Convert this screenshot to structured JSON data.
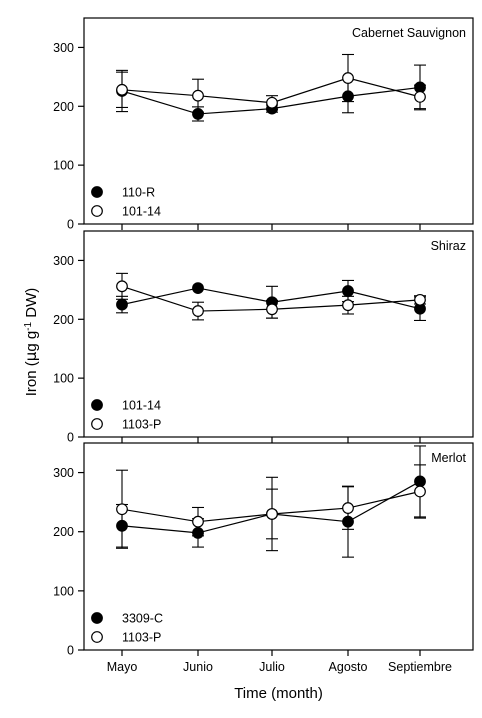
{
  "chart_data": {
    "type": "line",
    "shared": {
      "categories": [
        "Mayo",
        "Junio",
        "Julio",
        "Agosto",
        "Septiembre"
      ],
      "xlabel": "Time (month)",
      "ylabel_prefix": "Iron (",
      "ylabel_mu": "μ",
      "ylabel_unit": "g g",
      "ylabel_sup": "-1",
      "ylabel_suffix": " DW)",
      "ylim": [
        0,
        350
      ],
      "yticks": [
        0,
        100,
        200,
        300
      ]
    },
    "panels": [
      {
        "title": "Cabernet Sauvignon",
        "series": [
          {
            "name": "110-R",
            "marker": "filled",
            "values": [
              226,
              187,
              196,
              217,
              232
            ],
            "err": [
              35,
              12,
              6,
              28,
              38
            ]
          },
          {
            "name": "101-14",
            "marker": "open",
            "values": [
              228,
              218,
              206,
              248,
              216
            ],
            "err": [
              30,
              28,
              12,
              40,
              20
            ]
          }
        ]
      },
      {
        "title": "Shiraz",
        "series": [
          {
            "name": "101-14",
            "marker": "filled",
            "values": [
              225,
              253,
              229,
              248,
              218
            ],
            "err": [
              14,
              0,
              27,
              18,
              20
            ]
          },
          {
            "name": "1103-P",
            "marker": "open",
            "values": [
              256,
              214,
              217,
              224,
              233
            ],
            "err": [
              22,
              15,
              15,
              15,
              7
            ]
          }
        ]
      },
      {
        "title": "Merlot",
        "series": [
          {
            "name": "3309-C",
            "marker": "filled",
            "values": [
              210,
              198,
              230,
              217,
              285
            ],
            "err": [
              36,
              24,
              62,
              60,
              60
            ]
          },
          {
            "name": "1103-P",
            "marker": "open",
            "values": [
              238,
              217,
              230,
              240,
              268
            ],
            "err": [
              66,
              24,
              42,
              36,
              45
            ]
          }
        ]
      }
    ]
  }
}
